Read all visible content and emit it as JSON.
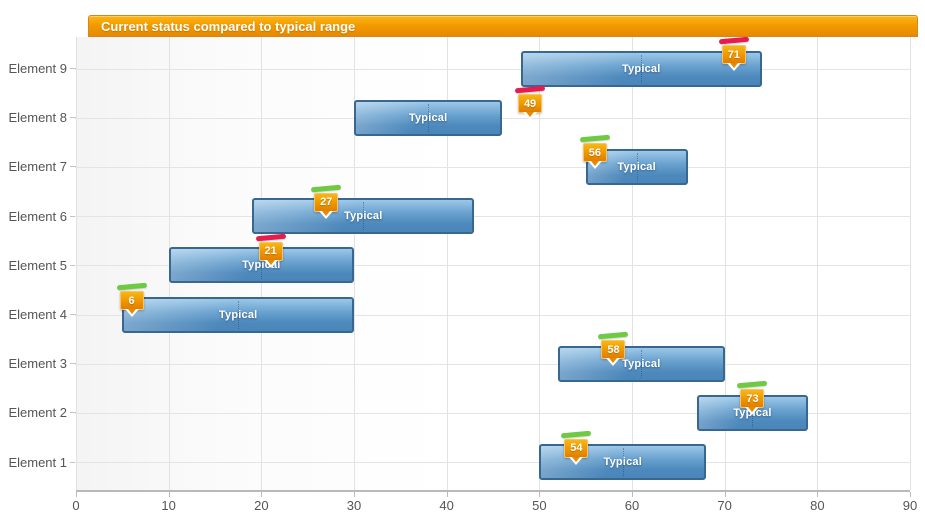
{
  "title": "Current status compared to typical range",
  "colors": {
    "title_bar_orange": "#f29b00",
    "bar_blue": "#4d89bc",
    "bar_border_blue": "#38678f",
    "badge_orange": "#ee9500",
    "marker_green": "#6fca43",
    "marker_red": "#e61c4e",
    "grid": "#e2e2e2",
    "axis_text": "#555555"
  },
  "chart_data": {
    "type": "bar",
    "subtype": "horizontal-range-bars-with-value-markers",
    "title": "Current status compared to typical range",
    "xlabel": "",
    "ylabel": "",
    "xlim": [
      0,
      90
    ],
    "x_ticks": [
      0,
      10,
      20,
      30,
      40,
      50,
      60,
      70,
      80,
      90
    ],
    "grid": true,
    "legend": null,
    "range_label": "Typical",
    "rows": [
      {
        "label": "Element 9",
        "range_low": 48,
        "range_high": 74,
        "value": 71,
        "status_color": "red"
      },
      {
        "label": "Element 8",
        "range_low": 30,
        "range_high": 46,
        "value": 49,
        "status_color": "red"
      },
      {
        "label": "Element 7",
        "range_low": 55,
        "range_high": 66,
        "value": 56,
        "status_color": "green"
      },
      {
        "label": "Element 6",
        "range_low": 19,
        "range_high": 43,
        "value": 27,
        "status_color": "green"
      },
      {
        "label": "Element 5",
        "range_low": 10,
        "range_high": 30,
        "value": 21,
        "status_color": "red"
      },
      {
        "label": "Element 4",
        "range_low": 5,
        "range_high": 30,
        "value": 6,
        "status_color": "green"
      },
      {
        "label": "Element 3",
        "range_low": 52,
        "range_high": 70,
        "value": 58,
        "status_color": "green"
      },
      {
        "label": "Element 2",
        "range_low": 67,
        "range_high": 79,
        "value": 73,
        "status_color": "green"
      },
      {
        "label": "Element 1",
        "range_low": 50,
        "range_high": 68,
        "value": 54,
        "status_color": "green"
      }
    ]
  }
}
